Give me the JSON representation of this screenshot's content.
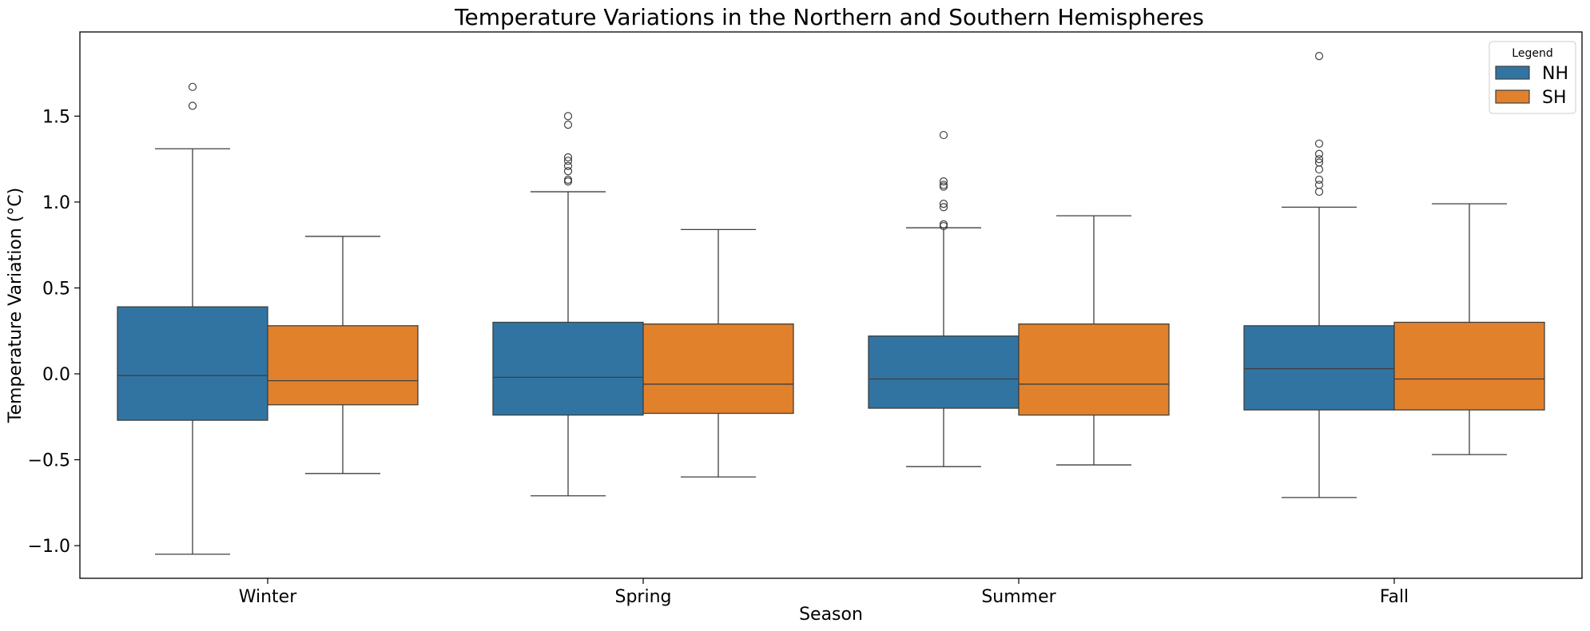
{
  "chart_data": {
    "type": "box",
    "title": "Temperature Variations in the Northern and Southern Hemispheres",
    "xlabel": "Season",
    "ylabel": "Temperature Variation (°C)",
    "ylim": [
      -1.19,
      1.99
    ],
    "yticks": [
      -1.0,
      -0.5,
      0.0,
      0.5,
      1.0,
      1.5
    ],
    "ytick_labels": [
      "−1.0",
      "−0.5",
      "0.0",
      "0.5",
      "1.0",
      "1.5"
    ],
    "categories": [
      "Winter",
      "Spring",
      "Summer",
      "Fall"
    ],
    "grid": false,
    "legend": {
      "title": "Legend",
      "placement": "top-right"
    },
    "series": [
      {
        "name": "NH",
        "color": "#3274a1",
        "boxes": [
          {
            "whisker_low": -1.05,
            "q1": -0.27,
            "median": -0.01,
            "q3": 0.39,
            "whisker_high": 1.31,
            "outliers": [
              1.67,
              1.56
            ]
          },
          {
            "whisker_low": -0.71,
            "q1": -0.24,
            "median": -0.02,
            "q3": 0.3,
            "whisker_high": 1.06,
            "outliers": [
              1.5,
              1.45,
              1.26,
              1.24,
              1.21,
              1.18,
              1.13,
              1.12
            ]
          },
          {
            "whisker_low": -0.54,
            "q1": -0.2,
            "median": -0.03,
            "q3": 0.22,
            "whisker_high": 0.85,
            "outliers": [
              1.39,
              1.12,
              1.1,
              1.09,
              0.99,
              0.97,
              0.87,
              0.86
            ]
          },
          {
            "whisker_low": -0.72,
            "q1": -0.21,
            "median": 0.03,
            "q3": 0.28,
            "whisker_high": 0.97,
            "outliers": [
              1.85,
              1.34,
              1.28,
              1.25,
              1.23,
              1.19,
              1.13,
              1.1,
              1.06
            ]
          }
        ]
      },
      {
        "name": "SH",
        "color": "#e1812c",
        "boxes": [
          {
            "whisker_low": -0.58,
            "q1": -0.18,
            "median": -0.04,
            "q3": 0.28,
            "whisker_high": 0.8,
            "outliers": []
          },
          {
            "whisker_low": -0.6,
            "q1": -0.23,
            "median": -0.06,
            "q3": 0.29,
            "whisker_high": 0.84,
            "outliers": []
          },
          {
            "whisker_low": -0.53,
            "q1": -0.24,
            "median": -0.06,
            "q3": 0.29,
            "whisker_high": 0.92,
            "outliers": []
          },
          {
            "whisker_low": -0.47,
            "q1": -0.21,
            "median": -0.03,
            "q3": 0.3,
            "whisker_high": 0.99,
            "outliers": []
          }
        ]
      }
    ]
  }
}
